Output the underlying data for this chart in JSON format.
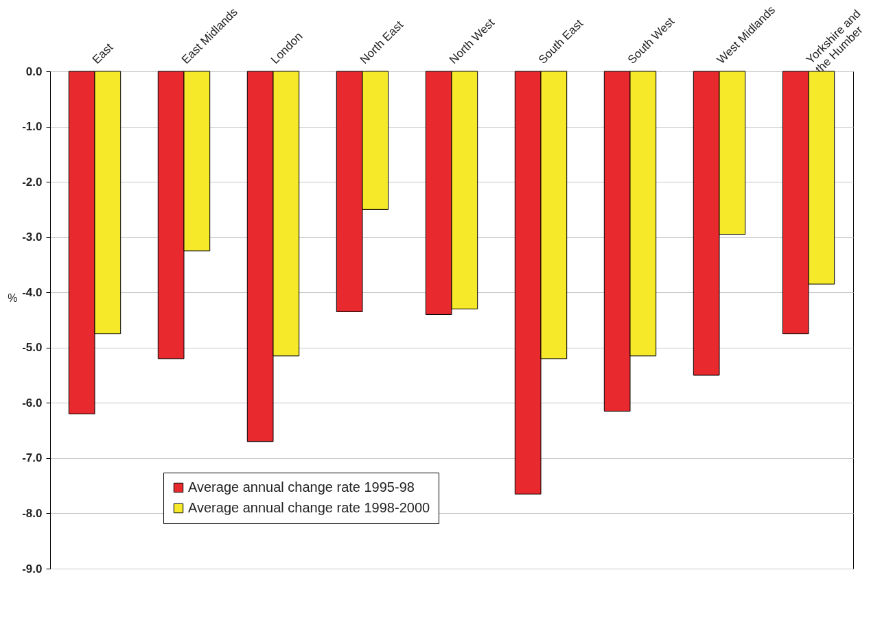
{
  "chart_data": {
    "type": "bar",
    "ylabel": "%",
    "categories": [
      "East",
      "East Midlands",
      "London",
      "North East",
      "North West",
      "South East",
      "South West",
      "West Midlands",
      "Yorkshire and the Humber"
    ],
    "series": [
      {
        "name": "Average annual change rate 1995-98",
        "color": "#e8292d",
        "values": [
          -6.2,
          -5.2,
          -6.7,
          -4.35,
          -4.4,
          -7.65,
          -6.15,
          -5.5,
          -4.75
        ]
      },
      {
        "name": "Average annual change rate 1998-2000",
        "color": "#f5e92a",
        "values": [
          -4.75,
          -3.25,
          -5.15,
          -2.5,
          -4.3,
          -5.2,
          -5.15,
          -2.95,
          -3.85
        ]
      }
    ],
    "ylim": [
      -9,
      0
    ],
    "yticks": [
      {
        "value": 0,
        "label": "0.0"
      },
      {
        "value": -1,
        "label": "-1.0"
      },
      {
        "value": -2,
        "label": "-2.0"
      },
      {
        "value": -3,
        "label": "-3.0"
      },
      {
        "value": -4,
        "label": "-4.0"
      },
      {
        "value": -5,
        "label": "-5.0"
      },
      {
        "value": -6,
        "label": "-6.0"
      },
      {
        "value": -7,
        "label": "-7.0"
      },
      {
        "value": -8,
        "label": "-8.0"
      },
      {
        "value": -9,
        "label": "-9.0"
      }
    ],
    "grid": "y",
    "legend": "bottom left"
  }
}
